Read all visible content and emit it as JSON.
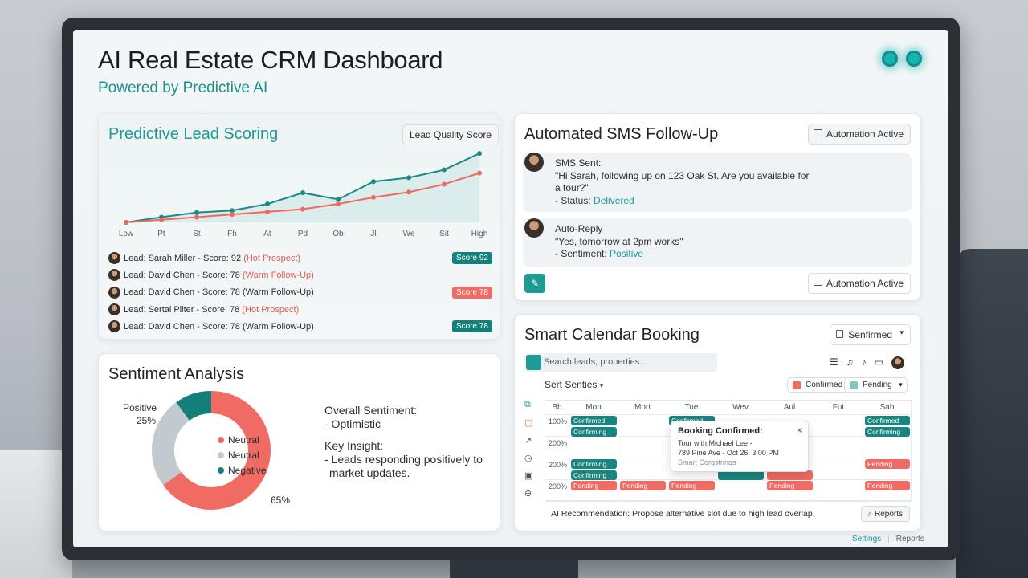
{
  "header": {
    "title": "AI Real Estate CRM Dashboard",
    "subtitle": "Powered by Predictive AI"
  },
  "lead_scoring": {
    "title": "Predictive Lead Scoring",
    "badge": "Lead Quality Score",
    "x_labels": [
      "Low",
      "Pt",
      "St",
      "Fh",
      "At",
      "Pd",
      "Ob",
      "Jl",
      "We",
      "Sit",
      "High"
    ],
    "leads": [
      {
        "pre": "Lead: Sarah Miller - Score: 92 ",
        "tag": "(Hot Prospect)",
        "tag_red": true,
        "score": "Score 92",
        "score_color": "teal"
      },
      {
        "pre": "Lead: David Chen - Score: 78 ",
        "tag": "(Warm Follow-Up)",
        "tag_red": true,
        "score": "",
        "score_color": ""
      },
      {
        "pre": "Lead: David Chen - Score: 78 ",
        "tag": "(Warm Follow-Up)",
        "tag_red": false,
        "score": "Score 78",
        "score_color": "red"
      },
      {
        "pre": "Lead: Sertal Pilter - Score: 78 ",
        "tag": "(Hot Prospect)",
        "tag_red": true,
        "score": "",
        "score_color": ""
      },
      {
        "pre": "Lead: David Chen - Score: 78 ",
        "tag": "(Warm Follow-Up)",
        "tag_red": false,
        "score": "Score 78",
        "score_color": "teal"
      }
    ]
  },
  "sentiment": {
    "title": "Sentiment Analysis",
    "positive_label": "Positive",
    "positive_pct": "25%",
    "negative_pct": "65%",
    "legend": [
      "Neutral",
      "Neutral",
      "Negative"
    ],
    "overall_label": "Overall Sentiment:",
    "overall_value": "- Optimistic",
    "insight_label": "Key Insight:",
    "insight_line1": "- Leads responding positively to",
    "insight_line2": "market updates."
  },
  "sms": {
    "title": "Automated SMS Follow-Up",
    "badge": "Automation Active",
    "msg1_title": "SMS Sent:",
    "msg1_line1": "\"Hi Sarah, following up on 123 Oak St. Are you available for",
    "msg1_line2": "a tour?\"",
    "msg1_status_prefix": "- Status: ",
    "msg1_status": "Delivered",
    "msg2_title": "Auto-Reply",
    "msg2_line1": "\"Yes, tomorrow at 2pm works\"",
    "msg2_sentiment_prefix": "- Sentiment: ",
    "msg2_sentiment": "Positive",
    "footer_badge": "Automation Active"
  },
  "calendar": {
    "title": "Smart Calendar Booking",
    "dropdown": "Senfirmed",
    "search_placeholder": "Search leads, properties...",
    "series_label": "Sert Senties",
    "confirmed_btn": "Confirmed",
    "pending_btn": "Pending",
    "day_headers": [
      "Bb",
      "Mon",
      "Mort",
      "Tue",
      "Wev",
      "Aul",
      "Fut",
      "Sab"
    ],
    "row_labels": [
      "100%",
      "200%",
      "200%",
      "200%"
    ],
    "popup_title": "Booking Confirmed:",
    "popup_line1": "Tour with Michael Lee -",
    "popup_line2": "789 Pine Ave - Oct 26, 3:00 PM",
    "popup_line3": "Smart Corgstrings",
    "reco": "AI Recommendation: Propose alternative slot due to high lead overlap.",
    "reports_btn": "Reports",
    "ev_confirmed": "Confirmed",
    "ev_confirming": "Confirming",
    "ev_pending": "Pending"
  },
  "footer": {
    "settings": "Settings",
    "reports": "Reports"
  },
  "chart_data": {
    "type": "line",
    "title": "Predictive Lead Scoring",
    "categories": [
      "Low",
      "Pt",
      "St",
      "Fh",
      "At",
      "Pd",
      "Ob",
      "Jl",
      "We",
      "Sit",
      "High"
    ],
    "series": [
      {
        "values": [
          0,
          8,
          15,
          18,
          28,
          45,
          35,
          62,
          68,
          80,
          105
        ]
      },
      {
        "values": [
          0,
          4,
          8,
          12,
          16,
          20,
          28,
          38,
          46,
          58,
          75
        ]
      }
    ],
    "ylim": [
      0,
      110
    ],
    "colors": {
      "series1": "#1a8a86",
      "series2": "#ee6a60"
    }
  }
}
